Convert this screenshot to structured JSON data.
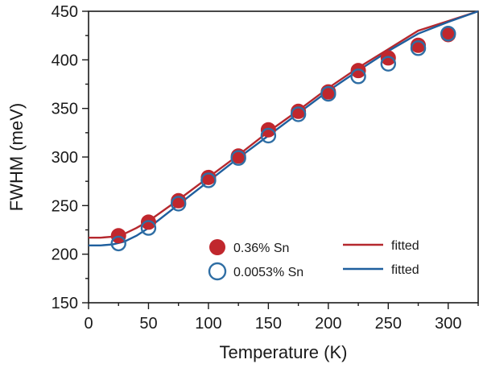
{
  "chart_data": {
    "type": "scatter",
    "xlabel": "Temperature (K)",
    "ylabel": "FWHM (meV)",
    "xlim": [
      0,
      325
    ],
    "ylim": [
      150,
      450
    ],
    "x_ticks": [
      0,
      50,
      100,
      150,
      200,
      250,
      300
    ],
    "y_ticks": [
      150,
      200,
      250,
      300,
      350,
      400,
      450
    ],
    "x_minor_step": 25,
    "y_minor_step": 25,
    "grid": false,
    "legend_position": "bottom-center",
    "series": [
      {
        "name": "0.36% Sn",
        "marker": "filled-circle",
        "color": "#c0272d",
        "x": [
          25,
          50,
          75,
          100,
          125,
          150,
          175,
          200,
          225,
          250,
          275,
          300
        ],
        "y": [
          219,
          233,
          255,
          279,
          301,
          328,
          347,
          367,
          389,
          402,
          415,
          426
        ]
      },
      {
        "name": "0.0053% Sn",
        "marker": "open-circle",
        "color": "#2f6ea4",
        "x": [
          25,
          50,
          75,
          100,
          125,
          150,
          175,
          200,
          225,
          250,
          275,
          300
        ],
        "y": [
          211,
          227,
          252,
          276,
          299,
          322,
          344,
          365,
          383,
          396,
          412,
          427
        ]
      },
      {
        "name": "fitted",
        "marker": "line",
        "color": "#b5282e",
        "x": [
          0,
          10,
          20,
          30,
          40,
          50,
          75,
          100,
          125,
          150,
          175,
          200,
          225,
          250,
          275,
          300,
          325
        ],
        "y": [
          217,
          217,
          218,
          221,
          227,
          234,
          256,
          279,
          302,
          326,
          348,
          371,
          392,
          411,
          430,
          440,
          450
        ]
      },
      {
        "name": "fitted",
        "marker": "line",
        "color": "#1f5f9e",
        "x": [
          0,
          10,
          20,
          30,
          40,
          50,
          75,
          100,
          125,
          150,
          175,
          200,
          225,
          250,
          275,
          300,
          325
        ],
        "y": [
          209,
          209,
          210,
          213,
          219,
          227,
          251,
          275,
          299,
          322,
          345,
          368,
          389,
          409,
          427,
          439,
          450
        ]
      }
    ]
  }
}
